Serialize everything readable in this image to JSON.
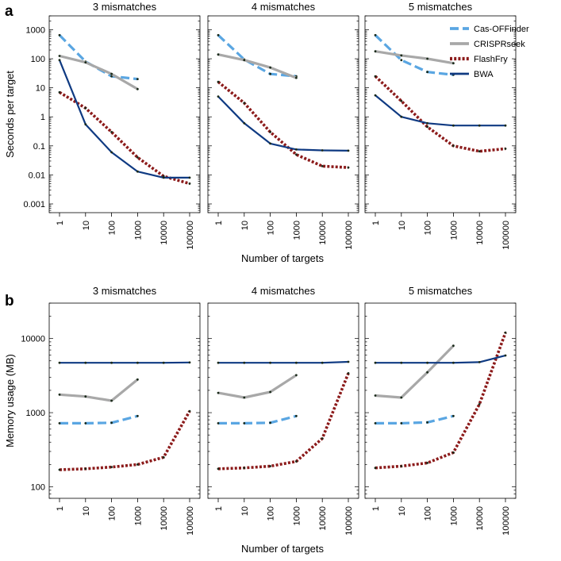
{
  "colors": {
    "Cas-OFFinder": "#5aa6e2",
    "CRISPRseek": "#a8a8a8",
    "FlashFry": "#8c1b1b",
    "BWA": "#0f3a82"
  },
  "legend": [
    "Cas-OFFinder",
    "CRISPRseek",
    "FlashFry",
    "BWA"
  ],
  "x_ticks": [
    "1",
    "10",
    "100",
    "1000",
    "10000",
    "100000"
  ],
  "panels": [
    {
      "label": "a",
      "ylabel": "Seconds per target",
      "xlabel": "Number of targets",
      "y_ticks": [
        "0.001",
        "0.01",
        "0.1",
        "1",
        "10",
        "100",
        "1000"
      ],
      "titles": [
        "3 mismatches",
        "4 mismatches",
        "5 mismatches"
      ]
    },
    {
      "label": "b",
      "ylabel": "Memory usage (MB)",
      "xlabel": "Number of targets",
      "y_ticks": [
        "100",
        "1000",
        "10000"
      ],
      "titles": [
        "3 mismatches",
        "4 mismatches",
        "5 mismatches"
      ]
    }
  ],
  "chart_data": [
    {
      "type": "line",
      "title": "a",
      "xscale": "log",
      "yscale": "log",
      "xlabel": "Number of targets",
      "ylabel": "Seconds per target",
      "x": [
        1,
        10,
        100,
        1000,
        10000,
        100000
      ],
      "ylim": [
        0.0005,
        3000
      ],
      "facets": [
        {
          "title": "3 mismatches",
          "series": [
            {
              "name": "Cas-OFFinder",
              "values": [
                650,
                80,
                25,
                20,
                null,
                null
              ]
            },
            {
              "name": "CRISPRseek",
              "values": [
                125,
                75,
                30,
                9,
                null,
                null
              ]
            },
            {
              "name": "FlashFry",
              "values": [
                7,
                2,
                0.3,
                0.04,
                0.009,
                0.005
              ]
            },
            {
              "name": "BWA",
              "values": [
                90,
                0.55,
                0.06,
                0.013,
                0.008,
                0.008
              ]
            }
          ]
        },
        {
          "title": "4 mismatches",
          "series": [
            {
              "name": "Cas-OFFinder",
              "values": [
                650,
                95,
                30,
                25,
                null,
                null
              ]
            },
            {
              "name": "CRISPRseek",
              "values": [
                140,
                90,
                50,
                22,
                null,
                null
              ]
            },
            {
              "name": "FlashFry",
              "values": [
                16,
                3,
                0.3,
                0.05,
                0.02,
                0.018
              ]
            },
            {
              "name": "BWA",
              "values": [
                5,
                0.6,
                0.12,
                0.075,
                0.07,
                0.068
              ]
            }
          ]
        },
        {
          "title": "5 mismatches",
          "series": [
            {
              "name": "Cas-OFFinder",
              "values": [
                650,
                90,
                35,
                28,
                null,
                null
              ]
            },
            {
              "name": "CRISPRseek",
              "values": [
                180,
                130,
                100,
                70,
                null,
                null
              ]
            },
            {
              "name": "FlashFry",
              "values": [
                25,
                3.5,
                0.45,
                0.1,
                0.065,
                0.08
              ]
            },
            {
              "name": "BWA",
              "values": [
                5.5,
                1,
                0.6,
                0.5,
                0.5,
                0.5
              ]
            }
          ]
        }
      ]
    },
    {
      "type": "line",
      "title": "b",
      "xscale": "log",
      "yscale": "log",
      "xlabel": "Number of targets",
      "ylabel": "Memory usage (MB)",
      "x": [
        1,
        10,
        100,
        1000,
        10000,
        100000
      ],
      "ylim": [
        70,
        30000
      ],
      "facets": [
        {
          "title": "3 mismatches",
          "series": [
            {
              "name": "Cas-OFFinder",
              "values": [
                720,
                720,
                730,
                900,
                null,
                null
              ]
            },
            {
              "name": "CRISPRseek",
              "values": [
                1750,
                1650,
                1450,
                2800,
                null,
                null
              ]
            },
            {
              "name": "FlashFry",
              "values": [
                170,
                175,
                185,
                200,
                250,
                1050
              ]
            },
            {
              "name": "BWA",
              "values": [
                4700,
                4700,
                4700,
                4700,
                4700,
                4750
              ]
            }
          ]
        },
        {
          "title": "4 mismatches",
          "series": [
            {
              "name": "Cas-OFFinder",
              "values": [
                720,
                720,
                730,
                900,
                null,
                null
              ]
            },
            {
              "name": "CRISPRseek",
              "values": [
                1850,
                1600,
                1900,
                3200,
                null,
                null
              ]
            },
            {
              "name": "FlashFry",
              "values": [
                175,
                180,
                190,
                220,
                450,
                3400
              ]
            },
            {
              "name": "BWA",
              "values": [
                4700,
                4700,
                4700,
                4700,
                4700,
                4850
              ]
            }
          ]
        },
        {
          "title": "5 mismatches",
          "series": [
            {
              "name": "Cas-OFFinder",
              "values": [
                720,
                720,
                740,
                900,
                null,
                null
              ]
            },
            {
              "name": "CRISPRseek",
              "values": [
                1700,
                1600,
                3500,
                8000,
                null,
                null
              ]
            },
            {
              "name": "FlashFry",
              "values": [
                180,
                190,
                210,
                290,
                1300,
                12000
              ]
            },
            {
              "name": "BWA",
              "values": [
                4700,
                4700,
                4700,
                4700,
                4800,
                5900
              ]
            }
          ]
        }
      ]
    }
  ]
}
